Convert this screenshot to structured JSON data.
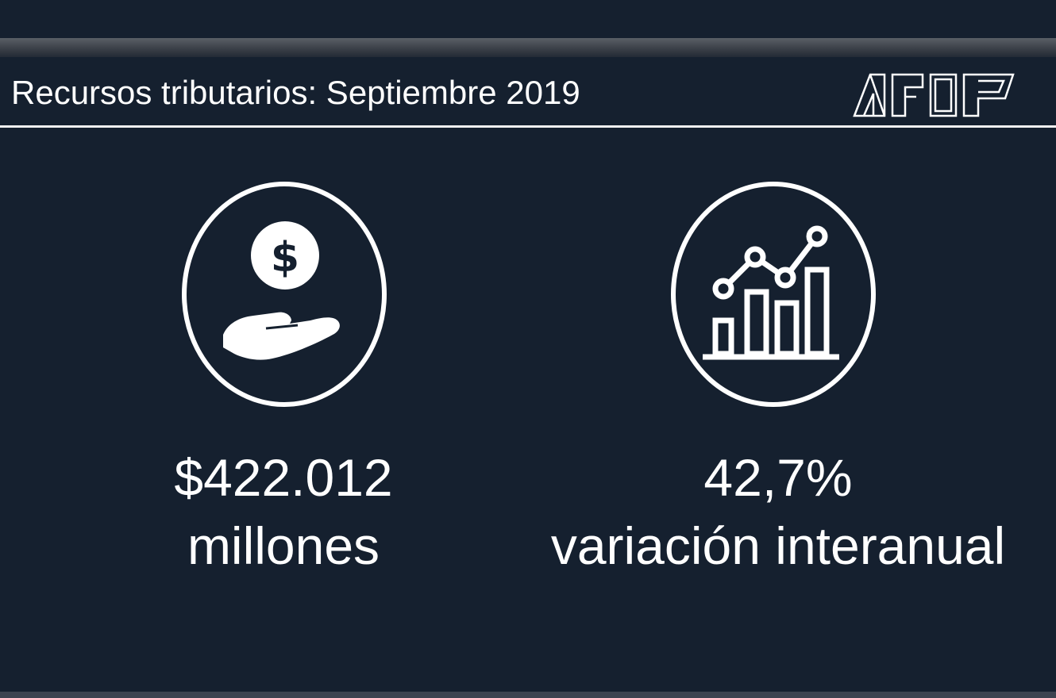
{
  "header": {
    "title": "Recursos tributarios: Septiembre 2019",
    "logo": "afip-logo"
  },
  "colors": {
    "background": "#15202f",
    "foreground": "#ffffff"
  },
  "stats": [
    {
      "icon": "hand-coin-icon",
      "value": "$422.012",
      "caption": "millones"
    },
    {
      "icon": "bar-line-chart-icon",
      "value": "42,7%",
      "caption": "variación interanual"
    }
  ]
}
